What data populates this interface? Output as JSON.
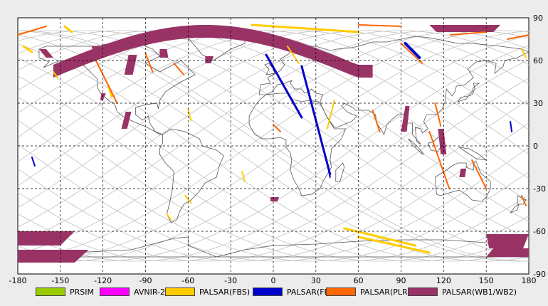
{
  "map": {
    "x_ticks": [
      "-180",
      "-150",
      "-120",
      "-90",
      "-60",
      "-30",
      "0",
      "30",
      "60",
      "90",
      "120",
      "150",
      "180"
    ],
    "y_ticks": [
      "90",
      "60",
      "30",
      "0",
      "-30",
      "-60",
      "-90"
    ],
    "grid": "dashed",
    "lon_range": [
      -180,
      180
    ],
    "lat_range": [
      -90,
      90
    ]
  },
  "colors": {
    "background": "#ffffff",
    "coastline": "#555555",
    "orbit": "#c0c0c0",
    "prism": "#99cc00",
    "avnir2": "#ff00ff",
    "fbs": "#ffcc00",
    "fbd": "#0000cc",
    "plr": "#ff6600",
    "wb": "#993366"
  },
  "legend": [
    {
      "label": "PRSIM",
      "color": "#99cc00"
    },
    {
      "label": "AVNIR-2",
      "color": "#ff00ff"
    },
    {
      "label": "PALSAR(FBS)",
      "color": "#ffcc00"
    },
    {
      "label": "PALSAR(FBD)",
      "color": "#0000cc"
    },
    {
      "label": "PALSAR(PLR)",
      "color": "#ff6600"
    },
    {
      "label": "PALSAR(WB1/WB2)",
      "color": "#993366"
    }
  ]
}
